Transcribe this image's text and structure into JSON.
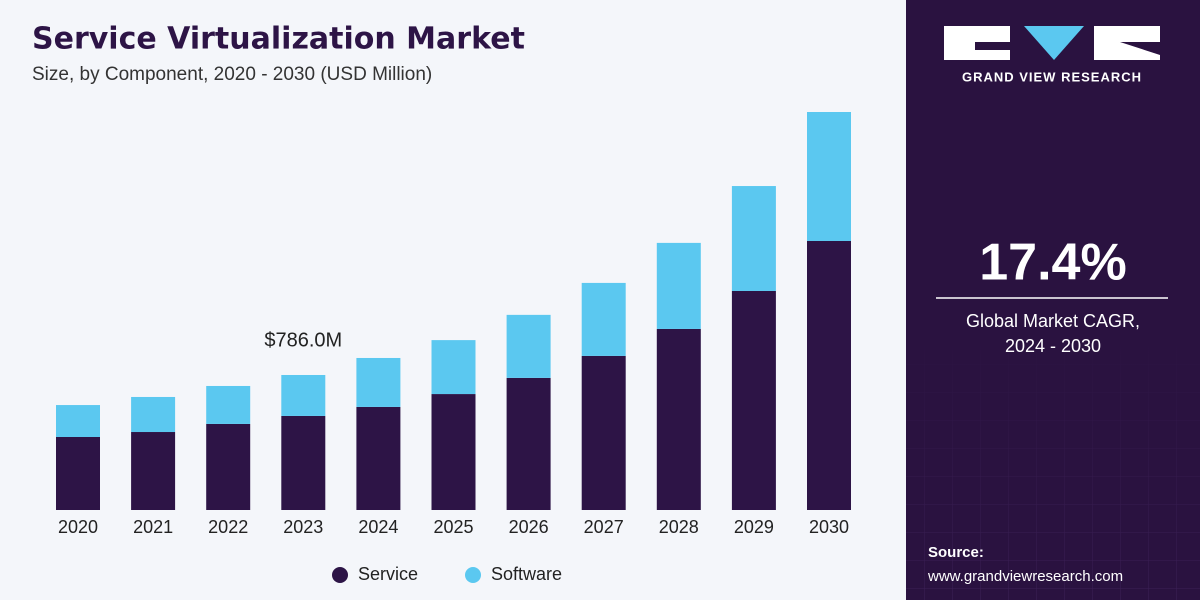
{
  "chart_data": {
    "type": "stacked_bar",
    "title": "Service Virtualization Market",
    "subtitle": "Size, by Component, 2020 - 2030 (USD Million)",
    "categories": [
      "2020",
      "2021",
      "2022",
      "2023",
      "2024",
      "2025",
      "2026",
      "2027",
      "2028",
      "2029",
      "2030"
    ],
    "series": [
      {
        "name": "Service",
        "color": "#2d1446",
        "values": [
          425,
          454,
          501,
          547.5,
          600,
          675,
          769,
          897,
          1054,
          1275,
          1566
        ]
      },
      {
        "name": "Software",
        "color": "#5bc8f0",
        "values": [
          186,
          204,
          221,
          238.5,
          285,
          314,
          367,
          425,
          501,
          611,
          751
        ]
      }
    ],
    "annotation": {
      "category": "2023",
      "value": 786.0,
      "label": "$786.0M"
    },
    "legend": "bottom"
  },
  "panel": {
    "brand": "GRAND VIEW RESEARCH",
    "cagr": "17.4%",
    "cagr_label": [
      "Global Market CAGR,",
      "2024 - 2030"
    ],
    "source_label": "Source:",
    "source_url": "www.grandviewresearch.com"
  }
}
